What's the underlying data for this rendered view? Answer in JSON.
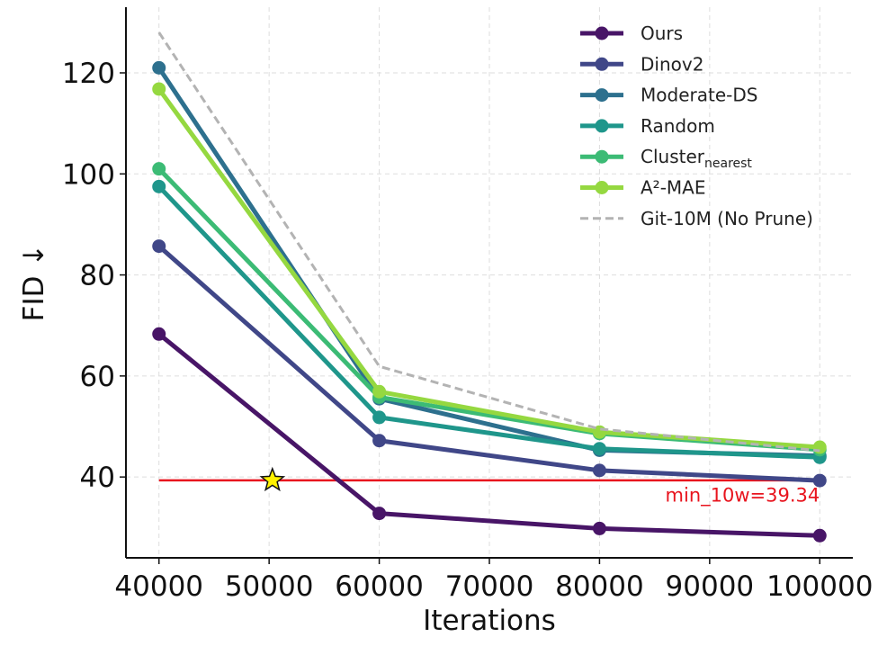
{
  "chart_data": {
    "type": "line",
    "xlabel": "Iterations",
    "ylabel": "FID ↓",
    "xlim": [
      37000,
      103000
    ],
    "ylim": [
      24,
      133
    ],
    "x_ticks": [
      40000,
      50000,
      60000,
      70000,
      80000,
      90000,
      100000
    ],
    "x_tick_labels": [
      "40000",
      "50000",
      "60000",
      "70000",
      "80000",
      "90000",
      "100000"
    ],
    "y_ticks": [
      40,
      60,
      80,
      100,
      120
    ],
    "y_tick_labels": [
      "40",
      "60",
      "80",
      "100",
      "120"
    ],
    "grid": true,
    "legend_position": "top-right",
    "x": [
      40000,
      60000,
      80000,
      100000
    ],
    "series": [
      {
        "key": "ours",
        "name": "Ours",
        "name_main": "Ours",
        "name_sub": "",
        "color": "#481567",
        "style": "solid-marker",
        "values": [
          68.3,
          32.8,
          29.8,
          28.4
        ]
      },
      {
        "key": "dinov2",
        "name": "Dinov2",
        "name_main": "Dinov2",
        "name_sub": "",
        "color": "#404788",
        "style": "solid-marker",
        "values": [
          85.7,
          47.2,
          41.3,
          39.3
        ]
      },
      {
        "key": "moderate",
        "name": "Moderate-DS",
        "name_main": "Moderate-DS",
        "name_sub": "",
        "color": "#2D708E",
        "style": "solid-marker",
        "values": [
          121.0,
          55.5,
          45.3,
          44.2
        ]
      },
      {
        "key": "random",
        "name": "Random",
        "name_main": "Random",
        "name_sub": "",
        "color": "#1F968B",
        "style": "solid-marker",
        "values": [
          97.5,
          51.8,
          45.6,
          43.9
        ]
      },
      {
        "key": "cluster",
        "name": "Cluster_nearest",
        "name_main": "Cluster",
        "name_sub": "nearest",
        "color": "#3CBB75",
        "style": "solid-marker",
        "values": [
          101.0,
          55.8,
          48.6,
          45.4
        ]
      },
      {
        "key": "a2mae",
        "name": "A²-MAE",
        "name_main": "A²-MAE",
        "name_sub": "",
        "color": "#95D840",
        "style": "solid-marker",
        "values": [
          116.8,
          56.9,
          48.9,
          45.9
        ]
      },
      {
        "key": "git10m",
        "name": "Git-10M (No Prune)",
        "name_main": "Git-10M (No Prune)",
        "name_sub": "",
        "color": "#B3B3B3",
        "style": "dashed",
        "values": [
          128.0,
          61.9,
          49.5,
          45.2
        ]
      }
    ],
    "reference_line": {
      "y": 39.34,
      "x_range": [
        40000,
        100000
      ],
      "color": "#E8141E"
    },
    "star_marker": {
      "x": 50300,
      "y": 39.34,
      "color": "#FFF200"
    },
    "annotation": {
      "text": "min_10w=39.34",
      "x": 100000,
      "y": 36.4,
      "color": "#E8141E"
    }
  }
}
